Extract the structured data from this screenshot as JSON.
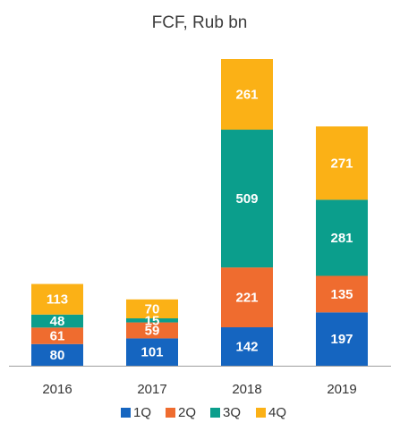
{
  "chart_data": {
    "type": "bar",
    "stacked": true,
    "title": "FCF, Rub bn",
    "xlabel": "",
    "ylabel": "",
    "categories": [
      "2016",
      "2017",
      "2018",
      "2019"
    ],
    "series": [
      {
        "name": "1Q",
        "color": "#1565c0",
        "values": [
          80,
          101,
          142,
          197
        ]
      },
      {
        "name": "2Q",
        "color": "#ef6c2f",
        "values": [
          61,
          59,
          221,
          135
        ]
      },
      {
        "name": "3Q",
        "color": "#0b9e8c",
        "values": [
          48,
          15,
          509,
          281
        ]
      },
      {
        "name": "4Q",
        "color": "#fbb116",
        "values": [
          113,
          70,
          261,
          271
        ]
      }
    ],
    "ylim": [
      0,
      1133
    ],
    "grid": false,
    "legend_position": "bottom",
    "axis_color": "#9e9e9e"
  }
}
